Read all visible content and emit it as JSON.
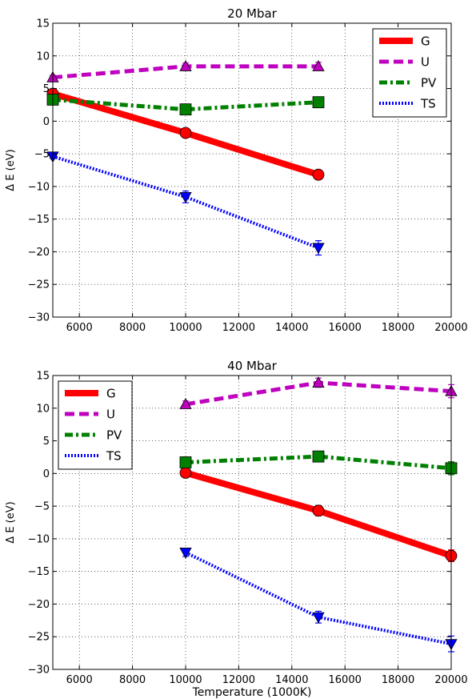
{
  "chart_data": [
    {
      "type": "line",
      "title": "20 Mbar",
      "xlabel": "",
      "ylabel": "Δ E (eV)",
      "xlim": [
        5000,
        20000
      ],
      "ylim": [
        -30,
        15
      ],
      "xticks": [
        6000,
        8000,
        10000,
        12000,
        14000,
        16000,
        18000,
        20000
      ],
      "yticks": [
        -30,
        -25,
        -20,
        -15,
        -10,
        -5,
        0,
        5,
        10,
        15
      ],
      "grid": true,
      "legend_position": "top-right",
      "series": [
        {
          "name": "G",
          "color": "#ff0000",
          "line": "solid",
          "marker": "circle",
          "x": [
            5000,
            10000,
            15000
          ],
          "y": [
            4.2,
            -1.8,
            -8.2
          ],
          "err": [
            0.3,
            0.6,
            0.7
          ]
        },
        {
          "name": "U",
          "color": "#bf00bf",
          "line": "dashed",
          "marker": "triangle-up",
          "x": [
            5000,
            10000,
            15000
          ],
          "y": [
            6.7,
            8.4,
            8.4
          ],
          "err": [
            0.3,
            0.5,
            0.6
          ]
        },
        {
          "name": "PV",
          "color": "#008000",
          "line": "dashdot",
          "marker": "square",
          "x": [
            5000,
            10000,
            15000
          ],
          "y": [
            3.3,
            1.8,
            2.9
          ],
          "err": [
            0.2,
            0.3,
            0.3
          ]
        },
        {
          "name": "TS",
          "color": "#0000ff",
          "line": "dotted",
          "marker": "triangle-down",
          "x": [
            5000,
            10000,
            15000
          ],
          "y": [
            -5.4,
            -11.6,
            -19.4
          ],
          "err": [
            0.3,
            0.9,
            1.1
          ]
        }
      ]
    },
    {
      "type": "line",
      "title": "40 Mbar",
      "xlabel": "Temperature (1000K)",
      "ylabel": "Δ E (eV)",
      "xlim": [
        5000,
        20000
      ],
      "ylim": [
        -30,
        15
      ],
      "xticks": [
        6000,
        8000,
        10000,
        12000,
        14000,
        16000,
        18000,
        20000
      ],
      "yticks": [
        -30,
        -25,
        -20,
        -15,
        -10,
        -5,
        0,
        5,
        10,
        15
      ],
      "grid": true,
      "legend_position": "top-left",
      "series": [
        {
          "name": "G",
          "color": "#ff0000",
          "line": "solid",
          "marker": "circle",
          "x": [
            10000,
            15000,
            20000
          ],
          "y": [
            0.1,
            -5.7,
            -12.6
          ],
          "err": [
            0.4,
            0.8,
            0.9
          ]
        },
        {
          "name": "U",
          "color": "#bf00bf",
          "line": "dashed",
          "marker": "triangle-up",
          "x": [
            10000,
            15000,
            20000
          ],
          "y": [
            10.6,
            13.9,
            12.6
          ],
          "err": [
            0.5,
            0.7,
            1.0
          ]
        },
        {
          "name": "PV",
          "color": "#008000",
          "line": "dashdot",
          "marker": "square",
          "x": [
            10000,
            15000,
            20000
          ],
          "y": [
            1.7,
            2.6,
            0.8
          ],
          "err": [
            0.3,
            0.3,
            1.0
          ]
        },
        {
          "name": "TS",
          "color": "#0000ff",
          "line": "dotted",
          "marker": "triangle-down",
          "x": [
            10000,
            15000,
            20000
          ],
          "y": [
            -12.1,
            -22.0,
            -26.1
          ],
          "err": [
            0.6,
            0.9,
            1.2
          ]
        }
      ]
    }
  ]
}
